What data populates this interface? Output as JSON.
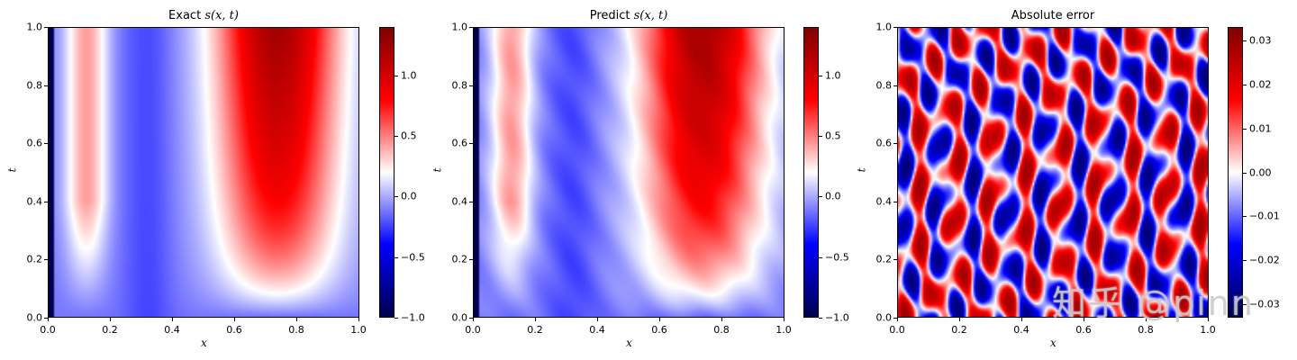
{
  "chart_data": [
    {
      "type": "heatmap",
      "title": "Exact s(x, t)",
      "title_prefix": "Exact ",
      "title_math": "s(x, t)",
      "xlabel": "x",
      "ylabel": "t",
      "xlim": [
        0.0,
        1.0
      ],
      "ylim": [
        0.0,
        1.0
      ],
      "xticks": [
        "0.0",
        "0.2",
        "0.4",
        "0.6",
        "0.8",
        "1.0"
      ],
      "yticks": [
        "0.0",
        "0.2",
        "0.4",
        "0.6",
        "0.8",
        "1.0"
      ],
      "colormap": "seismic",
      "colorbar": {
        "range": [
          -1.0,
          1.4
        ],
        "ticks": [
          "1.0",
          "0.5",
          "0.0",
          "−0.5",
          "−1.0"
        ]
      },
      "description": "Two red lobes (x~0.05-0.2 weak, x~0.5-0.95 strong, max ~1.4 near x=0.75,t=1.0), blue valley near x~0.3, light blue at small t"
    },
    {
      "type": "heatmap",
      "title": "Predict s(x, t)",
      "title_prefix": "Predict ",
      "title_math": "s(x, t)",
      "xlabel": "x",
      "ylabel": "t",
      "xlim": [
        0.0,
        1.0
      ],
      "ylim": [
        0.0,
        1.0
      ],
      "xticks": [
        "0.0",
        "0.2",
        "0.4",
        "0.6",
        "0.8",
        "1.0"
      ],
      "yticks": [
        "0.0",
        "0.2",
        "0.4",
        "0.6",
        "0.8",
        "1.0"
      ],
      "colormap": "seismic",
      "colorbar": {
        "range": [
          -1.0,
          1.4
        ],
        "ticks": [
          "1.0",
          "0.5",
          "0.0",
          "−0.5",
          "−1.0"
        ]
      },
      "description": "Nearly identical to the exact solution"
    },
    {
      "type": "heatmap",
      "title": "Absolute error",
      "title_prefix": "Absolute error",
      "title_math": "",
      "xlabel": "x",
      "ylabel": "t",
      "xlim": [
        0.0,
        1.0
      ],
      "ylim": [
        0.0,
        1.0
      ],
      "xticks": [
        "0.0",
        "0.2",
        "0.4",
        "0.6",
        "0.8",
        "1.0"
      ],
      "yticks": [
        "0.0",
        "0.2",
        "0.4",
        "0.6",
        "0.8",
        "1.0"
      ],
      "colormap": "seismic",
      "colorbar": {
        "range": [
          -0.033,
          0.033
        ],
        "ticks": [
          "0.03",
          "0.02",
          "0.01",
          "0.00",
          "−0.01",
          "−0.02",
          "−0.03"
        ]
      },
      "description": "Noisy streaky pattern of errors within about ±0.03"
    }
  ],
  "watermark": "知乎 @pinn"
}
